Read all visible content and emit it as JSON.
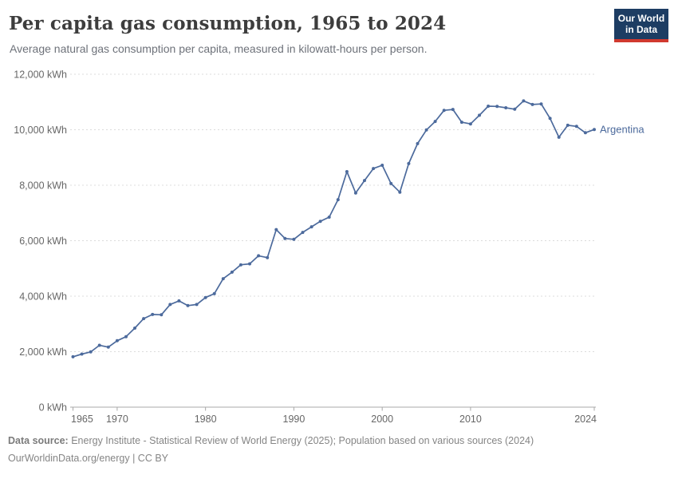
{
  "header": {
    "title": "Per capita gas consumption, 1965 to 2024",
    "subtitle": "Average natural gas consumption per capita, measured in kilowatt-hours per person."
  },
  "logo": {
    "line1": "Our World",
    "line2": "in Data",
    "bg_color": "#1d3d63",
    "accent_color": "#d0392f"
  },
  "chart_data": {
    "type": "line",
    "title": "Per capita gas consumption, 1965 to 2024",
    "xlabel": "",
    "ylabel": "",
    "unit": "kWh",
    "xlim": [
      1965,
      2024
    ],
    "ylim": [
      0,
      12000
    ],
    "grid": "horizontal-dashed",
    "legend_position": "end-of-line-label",
    "xticks": [
      {
        "value": 1965,
        "label": "1965",
        "anchor": "start"
      },
      {
        "value": 1970,
        "label": "1970",
        "anchor": "middle"
      },
      {
        "value": 1980,
        "label": "1980",
        "anchor": "middle"
      },
      {
        "value": 1990,
        "label": "1990",
        "anchor": "middle"
      },
      {
        "value": 2000,
        "label": "2000",
        "anchor": "middle"
      },
      {
        "value": 2010,
        "label": "2010",
        "anchor": "middle"
      },
      {
        "value": 2024,
        "label": "2024",
        "anchor": "end"
      }
    ],
    "yticks": [
      {
        "value": 0,
        "label": "0 kWh"
      },
      {
        "value": 2000,
        "label": "2,000 kWh"
      },
      {
        "value": 4000,
        "label": "4,000 kWh"
      },
      {
        "value": 6000,
        "label": "6,000 kWh"
      },
      {
        "value": 8000,
        "label": "8,000 kWh"
      },
      {
        "value": 10000,
        "label": "10,000 kWh"
      },
      {
        "value": 12000,
        "label": "12,000 kWh"
      }
    ],
    "series": [
      {
        "name": "Argentina",
        "color": "#4C6A9C",
        "x": [
          1965,
          1966,
          1967,
          1968,
          1969,
          1970,
          1971,
          1972,
          1973,
          1974,
          1975,
          1976,
          1977,
          1978,
          1979,
          1980,
          1981,
          1982,
          1983,
          1984,
          1985,
          1986,
          1987,
          1988,
          1989,
          1990,
          1991,
          1992,
          1993,
          1994,
          1995,
          1996,
          1997,
          1998,
          1999,
          2000,
          2001,
          2002,
          2003,
          2004,
          2005,
          2006,
          2007,
          2008,
          2009,
          2010,
          2011,
          2012,
          2013,
          2014,
          2015,
          2016,
          2017,
          2018,
          2019,
          2020,
          2021,
          2022,
          2023,
          2024
        ],
        "values": [
          1815,
          1915,
          1990,
          2230,
          2165,
          2395,
          2540,
          2850,
          3190,
          3340,
          3330,
          3700,
          3830,
          3660,
          3700,
          3950,
          4090,
          4630,
          4865,
          5130,
          5165,
          5455,
          5390,
          6400,
          6080,
          6050,
          6300,
          6500,
          6700,
          6850,
          7480,
          8490,
          7720,
          8170,
          8600,
          8720,
          8060,
          7750,
          8780,
          9500,
          9990,
          10300,
          10700,
          10730,
          10270,
          10210,
          10520,
          10850,
          10840,
          10790,
          10740,
          11040,
          10910,
          10930,
          10410,
          9730,
          10160,
          10120,
          9890,
          10010
        ]
      }
    ]
  },
  "footer": {
    "source_label": "Data source:",
    "source_text": " Energy Institute - Statistical Review of World Energy (2025); Population based on various sources (2024)",
    "license": "OurWorldinData.org/energy | CC BY"
  },
  "colors": {
    "title": "#3d3d3d",
    "subtitle": "#6e727a",
    "axis_text": "#666666",
    "gridline": "#dcdcdc",
    "axis_line": "#a8a8a8",
    "line": "#4C6A9C",
    "entity_label": "#4C6A9C",
    "footer": "#858585"
  }
}
